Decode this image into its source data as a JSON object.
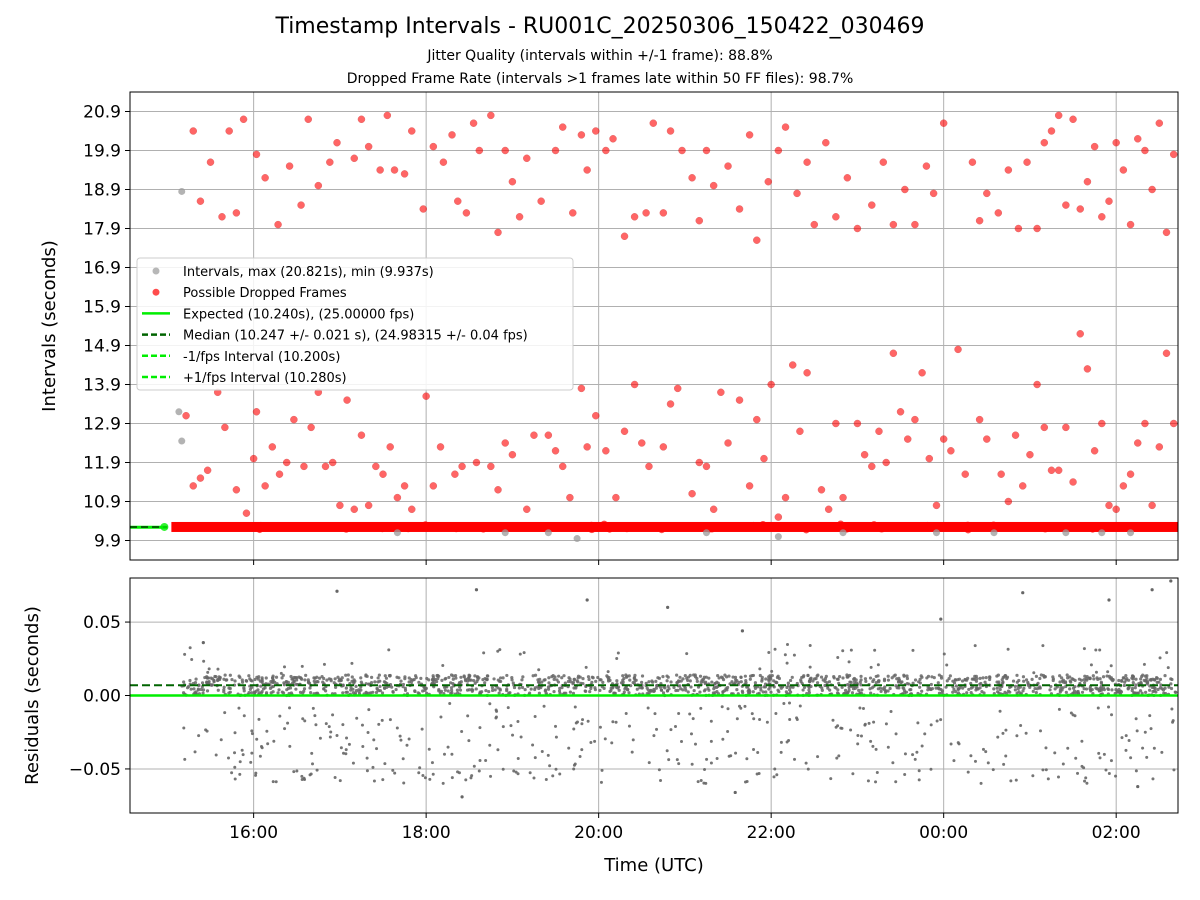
{
  "title": "Timestamp Intervals - RU001C_20250306_150422_030469",
  "subtitle_jitter": "Jitter Quality (intervals within +/-1 frame): 88.8%",
  "subtitle_dropped": "Dropped Frame Rate (intervals >1 frames late within 50 FF files): 98.7%",
  "colors": {
    "intervals": "#999999",
    "dropped": "#ff0000",
    "expected": "#00ee00",
    "median": "#006400",
    "residuals": "#666666",
    "grid": "#b0b0b0"
  },
  "chart_data": [
    {
      "type": "scatter",
      "ylabel": "Intervals (seconds)",
      "xlabel": "",
      "x_start": "15:03",
      "x_end": "02:43",
      "x_ticks": [
        "16:00",
        "18:00",
        "20:00",
        "22:00",
        "00:00",
        "02:00"
      ],
      "y_ticks": [
        "9.9",
        "10.9",
        "11.9",
        "12.9",
        "13.9",
        "14.9",
        "15.9",
        "16.9",
        "17.9",
        "18.9",
        "19.9",
        "20.9"
      ],
      "ylim": [
        9.4,
        21.4
      ],
      "grid": true,
      "legend_position": "center-left",
      "legend": [
        {
          "label": "Intervals, max (20.821s), min (9.937s)",
          "marker": "dot",
          "color": "#999999"
        },
        {
          "label": "Possible Dropped Frames",
          "marker": "dot",
          "color": "#ff0000"
        },
        {
          "label": "Expected (10.240s), (25.00000 fps)",
          "marker": "line",
          "color": "#00ee00"
        },
        {
          "label": "Median (10.247 +/- 0.021 s), (24.98315 +/- 0.04 fps)",
          "marker": "dashed",
          "color": "#006400"
        },
        {
          "label": "-1/fps Interval (10.200s)",
          "marker": "dashed",
          "color": "#00ee00"
        },
        {
          "label": "+1/fps Interval (10.280s)",
          "marker": "dashed",
          "color": "#00ee00"
        }
      ],
      "expected": 10.24,
      "median": 10.247,
      "minus_one_fps": 10.2,
      "plus_one_fps": 10.28,
      "max_interval": 20.821,
      "min_interval": 9.937,
      "baseline_band": 10.247,
      "gray_outliers": [
        {
          "t": "15:10",
          "v": 18.85
        },
        {
          "t": "15:08",
          "v": 13.2
        },
        {
          "t": "15:10",
          "v": 12.45
        },
        {
          "t": "17:40",
          "v": 10.1
        },
        {
          "t": "18:55",
          "v": 10.1
        },
        {
          "t": "19:25",
          "v": 10.1
        },
        {
          "t": "19:45",
          "v": 9.95
        },
        {
          "t": "21:15",
          "v": 10.1
        },
        {
          "t": "22:05",
          "v": 10.0
        },
        {
          "t": "22:50",
          "v": 10.1
        },
        {
          "t": "23:55",
          "v": 10.1
        },
        {
          "t": "00:35",
          "v": 10.1
        },
        {
          "t": "01:25",
          "v": 10.1
        },
        {
          "t": "01:50",
          "v": 10.1
        },
        {
          "t": "02:10",
          "v": 10.1
        }
      ],
      "dropped_high": [
        {
          "t": "15:18",
          "v": 20.4
        },
        {
          "t": "15:23",
          "v": 18.6
        },
        {
          "t": "15:30",
          "v": 19.6
        },
        {
          "t": "15:38",
          "v": 18.2
        },
        {
          "t": "15:43",
          "v": 20.4
        },
        {
          "t": "15:48",
          "v": 18.3
        },
        {
          "t": "15:53",
          "v": 20.7
        },
        {
          "t": "16:02",
          "v": 19.8
        },
        {
          "t": "16:08",
          "v": 19.2
        },
        {
          "t": "16:17",
          "v": 18.0
        },
        {
          "t": "16:25",
          "v": 19.5
        },
        {
          "t": "16:33",
          "v": 18.5
        },
        {
          "t": "16:38",
          "v": 20.7
        },
        {
          "t": "16:45",
          "v": 19.0
        },
        {
          "t": "16:53",
          "v": 19.6
        },
        {
          "t": "16:58",
          "v": 20.1
        },
        {
          "t": "17:10",
          "v": 19.7
        },
        {
          "t": "17:15",
          "v": 20.7
        },
        {
          "t": "17:20",
          "v": 20.0
        },
        {
          "t": "17:28",
          "v": 19.4
        },
        {
          "t": "17:33",
          "v": 20.8
        },
        {
          "t": "17:38",
          "v": 19.4
        },
        {
          "t": "17:45",
          "v": 19.3
        },
        {
          "t": "17:50",
          "v": 20.4
        },
        {
          "t": "17:58",
          "v": 18.4
        },
        {
          "t": "18:05",
          "v": 20.0
        },
        {
          "t": "18:12",
          "v": 19.6
        },
        {
          "t": "18:18",
          "v": 20.3
        },
        {
          "t": "18:22",
          "v": 18.6
        },
        {
          "t": "18:28",
          "v": 18.3
        },
        {
          "t": "18:33",
          "v": 20.6
        },
        {
          "t": "18:37",
          "v": 19.9
        },
        {
          "t": "18:45",
          "v": 20.8
        },
        {
          "t": "18:50",
          "v": 17.8
        },
        {
          "t": "18:55",
          "v": 19.9
        },
        {
          "t": "19:00",
          "v": 19.1
        },
        {
          "t": "19:05",
          "v": 18.2
        },
        {
          "t": "19:10",
          "v": 19.7
        },
        {
          "t": "19:20",
          "v": 18.6
        },
        {
          "t": "19:30",
          "v": 19.9
        },
        {
          "t": "19:35",
          "v": 20.5
        },
        {
          "t": "19:42",
          "v": 18.3
        },
        {
          "t": "19:48",
          "v": 20.3
        },
        {
          "t": "19:52",
          "v": 19.4
        },
        {
          "t": "19:58",
          "v": 20.4
        },
        {
          "t": "20:05",
          "v": 19.9
        },
        {
          "t": "20:10",
          "v": 20.2
        },
        {
          "t": "20:18",
          "v": 17.7
        },
        {
          "t": "20:25",
          "v": 18.2
        },
        {
          "t": "20:33",
          "v": 18.3
        },
        {
          "t": "20:38",
          "v": 20.6
        },
        {
          "t": "20:45",
          "v": 18.3
        },
        {
          "t": "20:50",
          "v": 20.4
        },
        {
          "t": "20:58",
          "v": 19.9
        },
        {
          "t": "21:05",
          "v": 19.2
        },
        {
          "t": "21:10",
          "v": 18.1
        },
        {
          "t": "21:15",
          "v": 19.9
        },
        {
          "t": "21:20",
          "v": 19.0
        },
        {
          "t": "21:30",
          "v": 19.5
        },
        {
          "t": "21:38",
          "v": 18.4
        },
        {
          "t": "21:45",
          "v": 20.3
        },
        {
          "t": "21:50",
          "v": 17.6
        },
        {
          "t": "21:58",
          "v": 19.1
        },
        {
          "t": "22:05",
          "v": 19.9
        },
        {
          "t": "22:10",
          "v": 20.5
        },
        {
          "t": "22:18",
          "v": 18.8
        },
        {
          "t": "22:25",
          "v": 19.6
        },
        {
          "t": "22:30",
          "v": 18.0
        },
        {
          "t": "22:38",
          "v": 20.1
        },
        {
          "t": "22:45",
          "v": 18.2
        },
        {
          "t": "22:53",
          "v": 19.2
        },
        {
          "t": "23:00",
          "v": 17.9
        },
        {
          "t": "23:10",
          "v": 18.5
        },
        {
          "t": "23:18",
          "v": 19.6
        },
        {
          "t": "23:25",
          "v": 18.0
        },
        {
          "t": "23:33",
          "v": 18.9
        },
        {
          "t": "23:40",
          "v": 18.0
        },
        {
          "t": "23:48",
          "v": 19.5
        },
        {
          "t": "23:53",
          "v": 18.8
        },
        {
          "t": "00:00",
          "v": 20.6
        },
        {
          "t": "00:20",
          "v": 19.6
        },
        {
          "t": "00:25",
          "v": 18.1
        },
        {
          "t": "00:30",
          "v": 18.8
        },
        {
          "t": "00:38",
          "v": 18.3
        },
        {
          "t": "00:45",
          "v": 19.4
        },
        {
          "t": "00:52",
          "v": 17.9
        },
        {
          "t": "00:58",
          "v": 19.6
        },
        {
          "t": "01:05",
          "v": 17.9
        },
        {
          "t": "01:10",
          "v": 20.1
        },
        {
          "t": "01:15",
          "v": 20.4
        },
        {
          "t": "01:20",
          "v": 20.8
        },
        {
          "t": "01:25",
          "v": 18.5
        },
        {
          "t": "01:30",
          "v": 20.7
        },
        {
          "t": "01:35",
          "v": 18.4
        },
        {
          "t": "01:40",
          "v": 19.1
        },
        {
          "t": "01:45",
          "v": 20.0
        },
        {
          "t": "01:50",
          "v": 18.2
        },
        {
          "t": "01:55",
          "v": 18.6
        },
        {
          "t": "02:00",
          "v": 20.1
        },
        {
          "t": "02:05",
          "v": 19.4
        },
        {
          "t": "02:10",
          "v": 18.0
        },
        {
          "t": "02:15",
          "v": 20.2
        },
        {
          "t": "02:20",
          "v": 19.9
        },
        {
          "t": "02:25",
          "v": 18.9
        },
        {
          "t": "02:30",
          "v": 20.6
        },
        {
          "t": "02:35",
          "v": 17.8
        },
        {
          "t": "02:40",
          "v": 19.8
        }
      ],
      "dropped_low": [
        {
          "t": "15:13",
          "v": 13.1
        },
        {
          "t": "15:18",
          "v": 11.3
        },
        {
          "t": "15:23",
          "v": 11.5
        },
        {
          "t": "15:28",
          "v": 11.7
        },
        {
          "t": "15:35",
          "v": 13.7
        },
        {
          "t": "15:40",
          "v": 12.8
        },
        {
          "t": "15:48",
          "v": 11.2
        },
        {
          "t": "15:55",
          "v": 10.6
        },
        {
          "t": "16:00",
          "v": 12.0
        },
        {
          "t": "16:02",
          "v": 13.2
        },
        {
          "t": "16:08",
          "v": 11.3
        },
        {
          "t": "16:13",
          "v": 12.3
        },
        {
          "t": "16:18",
          "v": 11.6
        },
        {
          "t": "16:23",
          "v": 11.9
        },
        {
          "t": "16:28",
          "v": 13.0
        },
        {
          "t": "16:35",
          "v": 11.8
        },
        {
          "t": "16:40",
          "v": 12.8
        },
        {
          "t": "16:45",
          "v": 13.7
        },
        {
          "t": "16:50",
          "v": 11.8
        },
        {
          "t": "16:55",
          "v": 11.9
        },
        {
          "t": "17:00",
          "v": 10.8
        },
        {
          "t": "17:05",
          "v": 13.5
        },
        {
          "t": "17:10",
          "v": 10.7
        },
        {
          "t": "17:15",
          "v": 12.6
        },
        {
          "t": "17:20",
          "v": 10.8
        },
        {
          "t": "17:25",
          "v": 11.8
        },
        {
          "t": "17:30",
          "v": 11.6
        },
        {
          "t": "17:35",
          "v": 12.3
        },
        {
          "t": "17:40",
          "v": 11.0
        },
        {
          "t": "17:45",
          "v": 11.3
        },
        {
          "t": "17:50",
          "v": 10.7
        },
        {
          "t": "18:00",
          "v": 13.6
        },
        {
          "t": "18:05",
          "v": 11.3
        },
        {
          "t": "18:10",
          "v": 12.3
        },
        {
          "t": "18:20",
          "v": 11.6
        },
        {
          "t": "18:25",
          "v": 11.8
        },
        {
          "t": "18:35",
          "v": 11.9
        },
        {
          "t": "18:45",
          "v": 11.8
        },
        {
          "t": "18:50",
          "v": 11.2
        },
        {
          "t": "18:55",
          "v": 12.4
        },
        {
          "t": "19:00",
          "v": 12.1
        },
        {
          "t": "19:10",
          "v": 10.7
        },
        {
          "t": "19:15",
          "v": 12.6
        },
        {
          "t": "19:25",
          "v": 12.6
        },
        {
          "t": "19:30",
          "v": 12.2
        },
        {
          "t": "19:35",
          "v": 11.8
        },
        {
          "t": "19:40",
          "v": 11.0
        },
        {
          "t": "19:48",
          "v": 13.8
        },
        {
          "t": "19:52",
          "v": 12.3
        },
        {
          "t": "19:58",
          "v": 13.1
        },
        {
          "t": "20:05",
          "v": 12.2
        },
        {
          "t": "20:12",
          "v": 11.0
        },
        {
          "t": "20:18",
          "v": 12.7
        },
        {
          "t": "20:25",
          "v": 13.9
        },
        {
          "t": "20:30",
          "v": 12.4
        },
        {
          "t": "20:35",
          "v": 11.8
        },
        {
          "t": "20:45",
          "v": 12.3
        },
        {
          "t": "20:50",
          "v": 13.4
        },
        {
          "t": "20:55",
          "v": 13.8
        },
        {
          "t": "21:05",
          "v": 11.1
        },
        {
          "t": "21:10",
          "v": 11.9
        },
        {
          "t": "21:15",
          "v": 11.8
        },
        {
          "t": "21:20",
          "v": 10.7
        },
        {
          "t": "21:25",
          "v": 13.7
        },
        {
          "t": "21:30",
          "v": 12.4
        },
        {
          "t": "21:38",
          "v": 13.5
        },
        {
          "t": "21:45",
          "v": 11.3
        },
        {
          "t": "21:50",
          "v": 13.0
        },
        {
          "t": "21:55",
          "v": 12.0
        },
        {
          "t": "22:00",
          "v": 13.9
        },
        {
          "t": "22:05",
          "v": 10.5
        },
        {
          "t": "22:10",
          "v": 11.0
        },
        {
          "t": "22:15",
          "v": 14.4
        },
        {
          "t": "22:20",
          "v": 12.7
        },
        {
          "t": "22:25",
          "v": 14.2
        },
        {
          "t": "22:35",
          "v": 11.2
        },
        {
          "t": "22:40",
          "v": 10.7
        },
        {
          "t": "22:45",
          "v": 12.9
        },
        {
          "t": "22:50",
          "v": 11.0
        },
        {
          "t": "23:00",
          "v": 12.9
        },
        {
          "t": "23:05",
          "v": 12.1
        },
        {
          "t": "23:10",
          "v": 11.8
        },
        {
          "t": "23:15",
          "v": 12.7
        },
        {
          "t": "23:20",
          "v": 11.9
        },
        {
          "t": "23:25",
          "v": 14.7
        },
        {
          "t": "23:30",
          "v": 13.2
        },
        {
          "t": "23:35",
          "v": 12.5
        },
        {
          "t": "23:40",
          "v": 13.0
        },
        {
          "t": "23:45",
          "v": 14.2
        },
        {
          "t": "23:50",
          "v": 12.0
        },
        {
          "t": "23:55",
          "v": 10.8
        },
        {
          "t": "00:00",
          "v": 12.5
        },
        {
          "t": "00:05",
          "v": 12.2
        },
        {
          "t": "00:10",
          "v": 14.8
        },
        {
          "t": "00:15",
          "v": 11.6
        },
        {
          "t": "00:25",
          "v": 13.0
        },
        {
          "t": "00:30",
          "v": 12.5
        },
        {
          "t": "00:40",
          "v": 11.6
        },
        {
          "t": "00:45",
          "v": 10.9
        },
        {
          "t": "00:50",
          "v": 12.6
        },
        {
          "t": "00:55",
          "v": 11.3
        },
        {
          "t": "01:00",
          "v": 12.1
        },
        {
          "t": "01:05",
          "v": 13.9
        },
        {
          "t": "01:10",
          "v": 12.8
        },
        {
          "t": "01:15",
          "v": 11.7
        },
        {
          "t": "01:20",
          "v": 11.7
        },
        {
          "t": "01:25",
          "v": 12.8
        },
        {
          "t": "01:30",
          "v": 11.4
        },
        {
          "t": "01:35",
          "v": 15.2
        },
        {
          "t": "01:40",
          "v": 14.3
        },
        {
          "t": "01:45",
          "v": 12.2
        },
        {
          "t": "01:50",
          "v": 12.9
        },
        {
          "t": "01:55",
          "v": 10.8
        },
        {
          "t": "02:00",
          "v": 10.7
        },
        {
          "t": "02:05",
          "v": 11.3
        },
        {
          "t": "02:10",
          "v": 11.6
        },
        {
          "t": "02:15",
          "v": 12.4
        },
        {
          "t": "02:20",
          "v": 12.9
        },
        {
          "t": "02:25",
          "v": 10.8
        },
        {
          "t": "02:30",
          "v": 12.3
        },
        {
          "t": "02:35",
          "v": 14.7
        },
        {
          "t": "02:40",
          "v": 12.9
        }
      ]
    },
    {
      "type": "scatter",
      "xlabel": "Time (UTC)",
      "ylabel": "Residuals (seconds)",
      "x_start": "15:03",
      "x_end": "02:43",
      "x_ticks": [
        "16:00",
        "18:00",
        "20:00",
        "22:00",
        "00:00",
        "02:00"
      ],
      "y_ticks": [
        "0.05",
        "0.00",
        "−0.05"
      ],
      "ylim": [
        -0.08,
        0.08
      ],
      "grid": true,
      "expected_residual": 0.0,
      "median_residual": 0.007,
      "band_center": 0.007,
      "band_halfwidth": 0.007,
      "outliers": [
        {
          "t": "16:58",
          "v": 0.071
        },
        {
          "t": "18:35",
          "v": 0.072
        },
        {
          "t": "19:52",
          "v": 0.065
        },
        {
          "t": "20:48",
          "v": 0.06
        },
        {
          "t": "21:40",
          "v": 0.044
        },
        {
          "t": "23:58",
          "v": 0.052
        },
        {
          "t": "00:55",
          "v": 0.07
        },
        {
          "t": "01:55",
          "v": 0.065
        },
        {
          "t": "02:25",
          "v": 0.072
        },
        {
          "t": "02:38",
          "v": 0.078
        },
        {
          "t": "18:25",
          "v": -0.069
        },
        {
          "t": "21:35",
          "v": -0.066
        },
        {
          "t": "02:15",
          "v": -0.062
        },
        {
          "t": "15:25",
          "v": 0.036
        }
      ]
    }
  ]
}
